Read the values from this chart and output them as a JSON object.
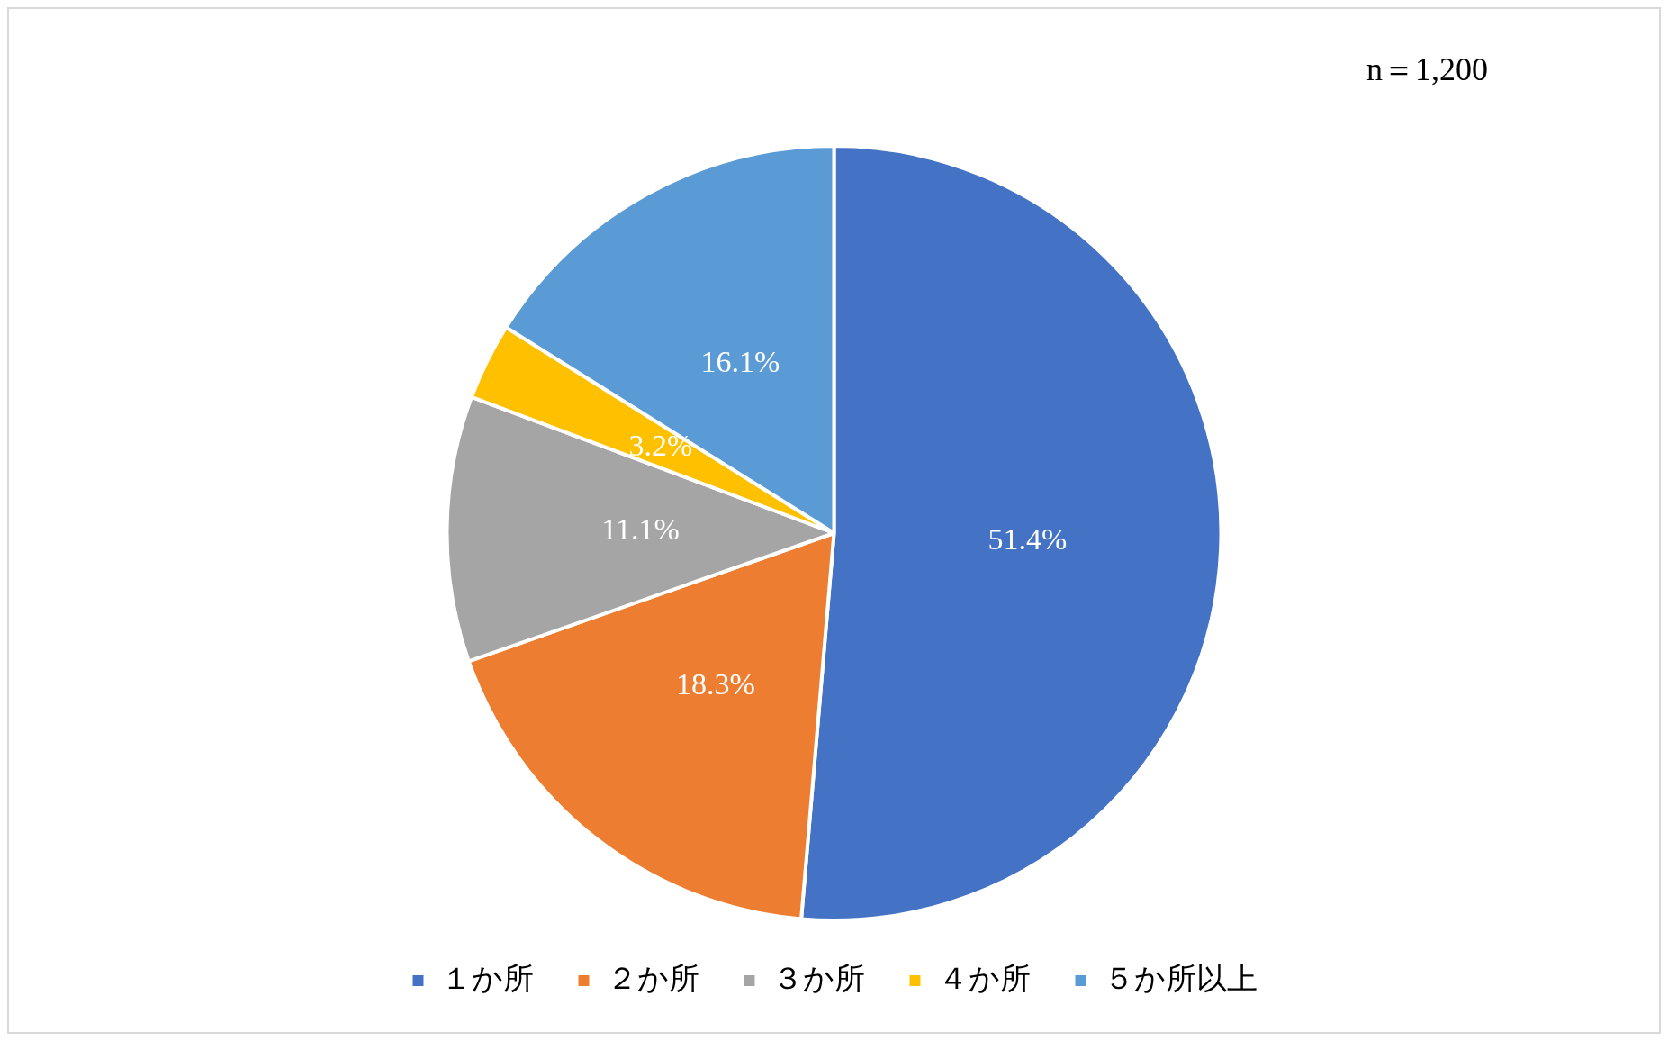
{
  "chart_data": {
    "type": "pie",
    "categories": [
      "１か所",
      "２か所",
      "３か所",
      "４か所",
      "５か所以上"
    ],
    "values": [
      51.4,
      18.3,
      11.1,
      3.2,
      16.1
    ],
    "colors": [
      "#4472c4",
      "#ed7d31",
      "#a5a5a5",
      "#ffc000",
      "#5b9bd5"
    ],
    "value_labels": [
      "51.4%",
      "18.3%",
      "11.1%",
      "3.2%",
      "16.1%"
    ],
    "annotations": [
      "n＝1,200"
    ],
    "legend": "bottom"
  }
}
